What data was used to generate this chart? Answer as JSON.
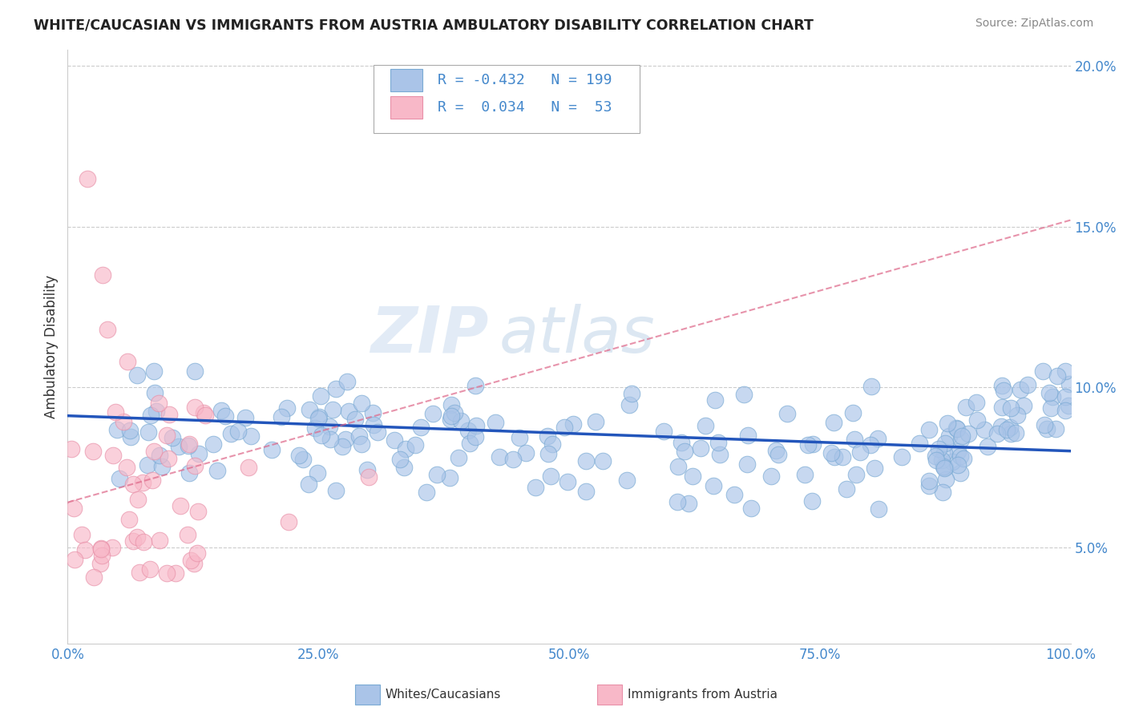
{
  "title": "WHITE/CAUCASIAN VS IMMIGRANTS FROM AUSTRIA AMBULATORY DISABILITY CORRELATION CHART",
  "source": "Source: ZipAtlas.com",
  "ylabel": "Ambulatory Disability",
  "watermark_zip": "ZIP",
  "watermark_atlas": "atlas",
  "blue_R": -0.432,
  "blue_N": 199,
  "pink_R": 0.034,
  "pink_N": 53,
  "blue_color": "#aac4e8",
  "blue_edge_color": "#7aaad4",
  "blue_line_color": "#2255bb",
  "pink_color": "#f8b8c8",
  "pink_edge_color": "#e890a8",
  "pink_line_color": "#dd6688",
  "title_color": "#222222",
  "axis_color": "#4488cc",
  "grid_color": "#cccccc",
  "background_color": "#ffffff",
  "legend_text_color": "#4488cc",
  "ylim": [
    0.02,
    0.205
  ],
  "xlim": [
    0.0,
    1.0
  ],
  "yticks": [
    0.05,
    0.1,
    0.15,
    0.2
  ],
  "ytick_labels": [
    "5.0%",
    "10.0%",
    "15.0%",
    "20.0%"
  ],
  "xticks": [
    0.0,
    0.25,
    0.5,
    0.75,
    1.0
  ],
  "xtick_labels": [
    "0.0%",
    "25.0%",
    "50.0%",
    "75.0%",
    "100.0%"
  ],
  "blue_trend_start_y": 0.091,
  "blue_trend_end_y": 0.08,
  "pink_trend_start_y": 0.064,
  "pink_trend_end_y": 0.152
}
